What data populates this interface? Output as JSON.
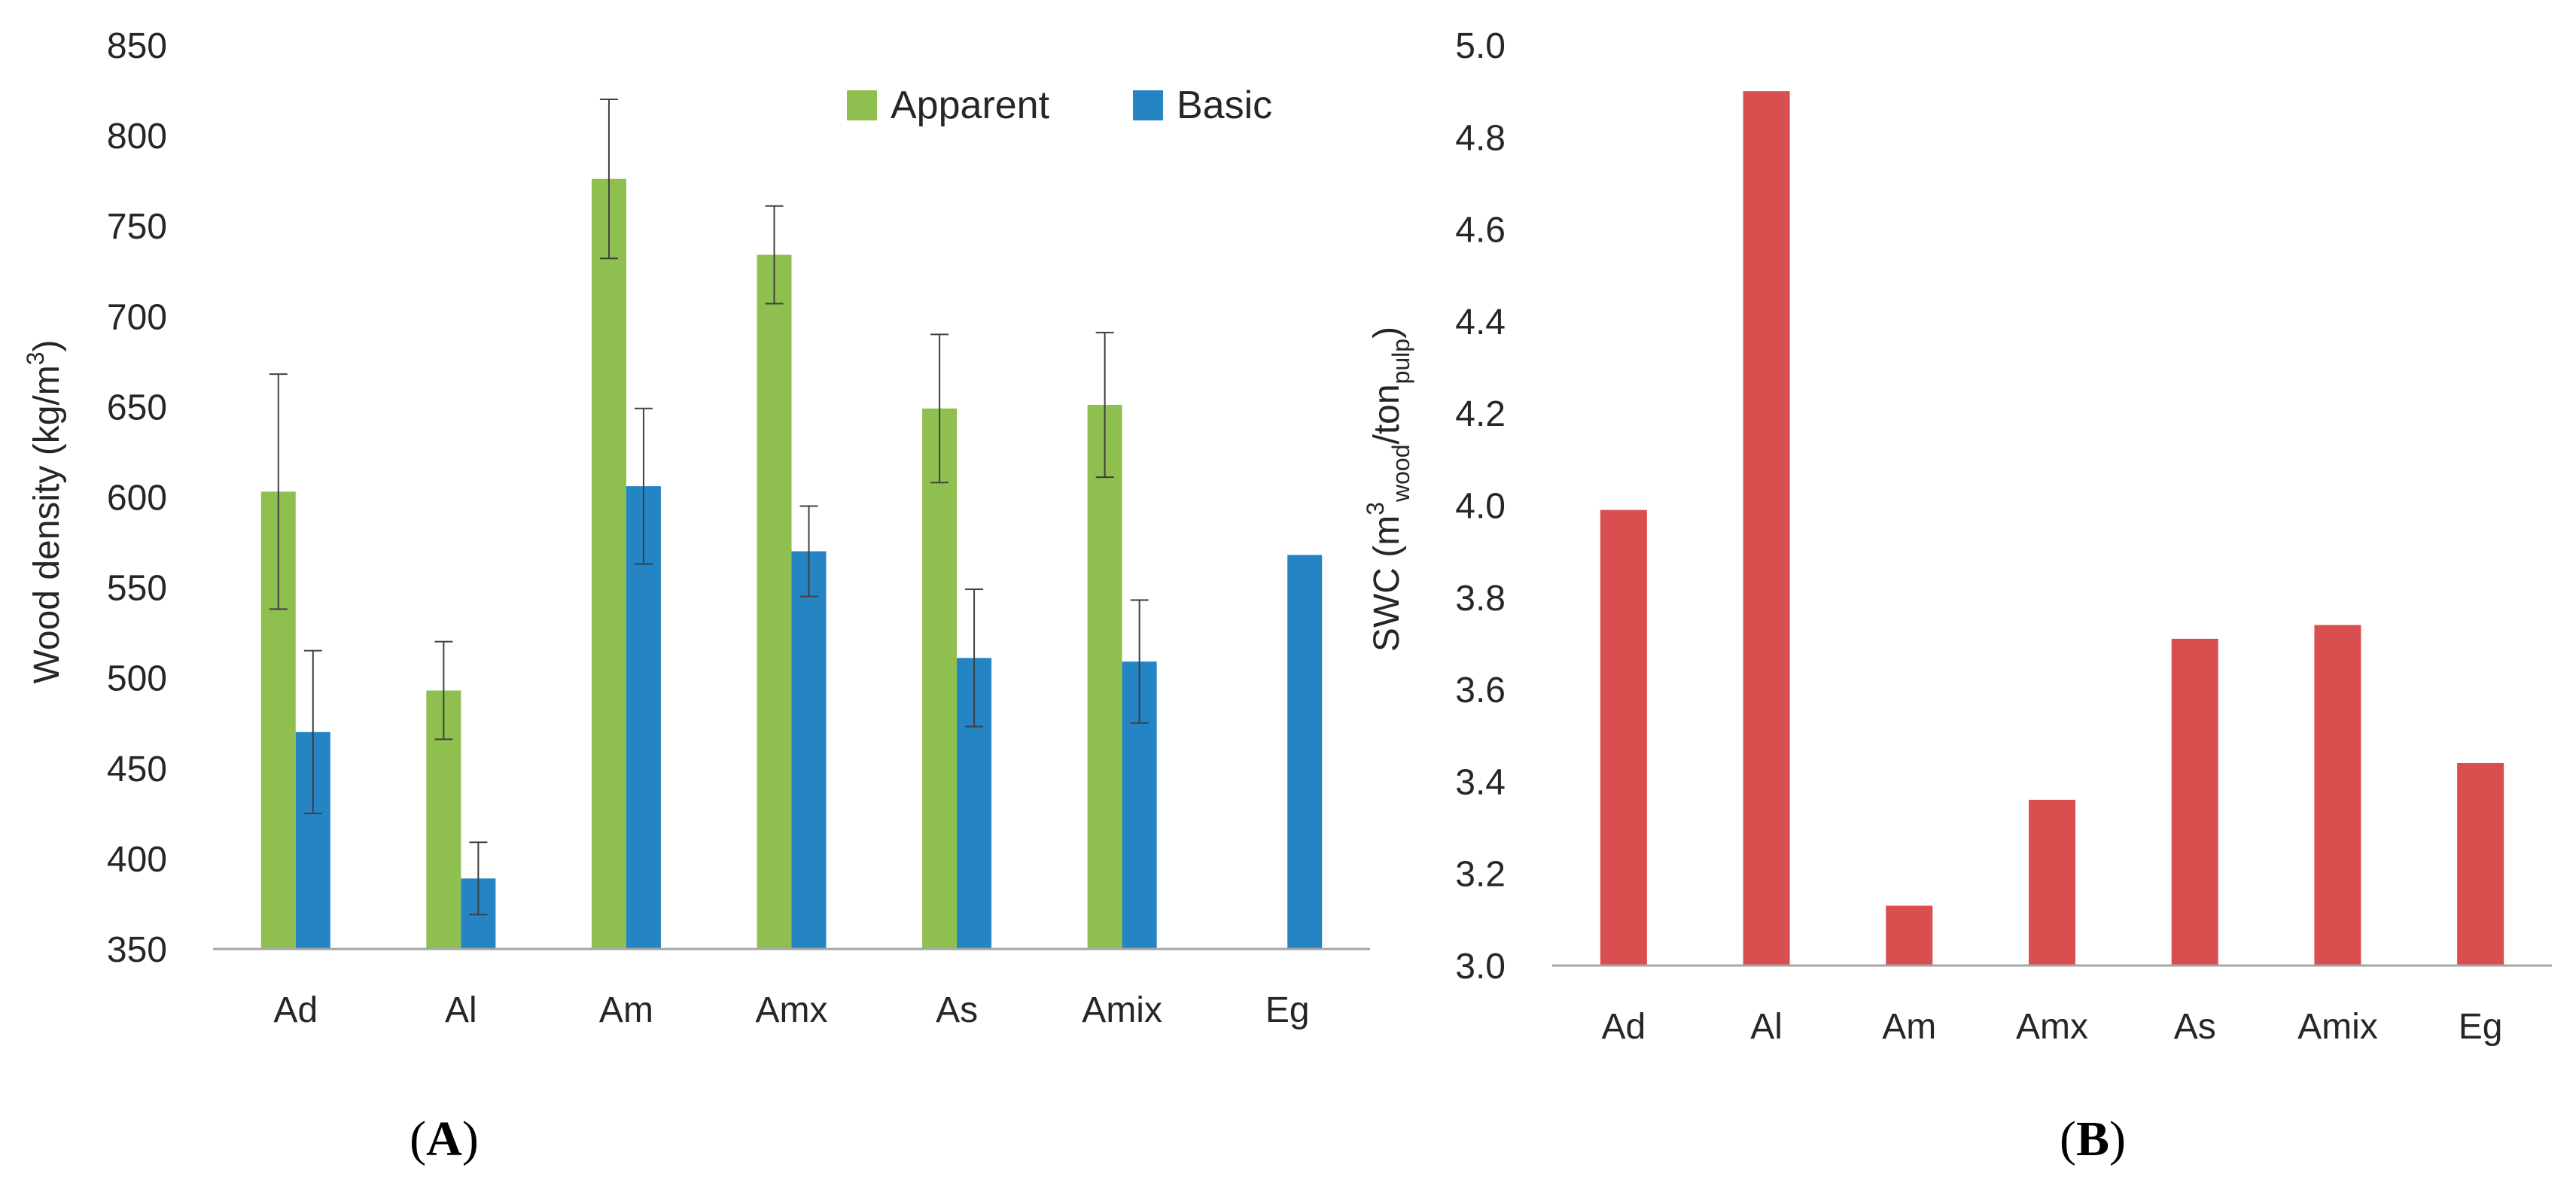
{
  "chart_data": [
    {
      "type": "bar",
      "panel_label": "A",
      "categories": [
        "Ad",
        "Al",
        "Am",
        "Amx",
        "As",
        "Amix",
        "Eg"
      ],
      "ylabel": "Wood density (kg/m³)",
      "ylabel_parts": {
        "main": "Wood density (kg/m",
        "sup": "3",
        "close": ")"
      },
      "ylim": [
        350,
        850
      ],
      "yticks": [
        350,
        400,
        450,
        500,
        550,
        600,
        650,
        700,
        750,
        800,
        850
      ],
      "grid": false,
      "legend_position": "top-right",
      "series": [
        {
          "name": "Apparent",
          "color": "#8fc04f",
          "values": [
            603,
            493,
            776,
            734,
            649,
            651,
            null
          ],
          "errors": [
            65,
            27,
            44,
            27,
            41,
            40,
            null
          ]
        },
        {
          "name": "Basic",
          "color": "#2484c4",
          "values": [
            470,
            389,
            606,
            570,
            511,
            509,
            568
          ],
          "errors": [
            45,
            20,
            43,
            25,
            38,
            34,
            null
          ]
        }
      ]
    },
    {
      "type": "bar",
      "panel_label": "B",
      "categories": [
        "Ad",
        "Al",
        "Am",
        "Amx",
        "As",
        "Amix",
        "Eg"
      ],
      "ylabel": "SWC (m³wood/tonpulp)",
      "ylabel_parts": {
        "main": "SWC (m",
        "sup": "3",
        "sub1": "wood",
        "mid": "/ton",
        "sub2": "pulp",
        "close": ")"
      },
      "ylim": [
        3.0,
        5.0
      ],
      "yticks": [
        "3.0",
        "3.2",
        "3.4",
        "3.6",
        "3.8",
        "4.0",
        "4.2",
        "4.4",
        "4.6",
        "4.8",
        "5.0"
      ],
      "grid": false,
      "series": [
        {
          "color": "#d94f4f",
          "values": [
            3.99,
            4.9,
            3.13,
            3.36,
            3.71,
            3.74,
            3.44
          ]
        }
      ]
    }
  ]
}
